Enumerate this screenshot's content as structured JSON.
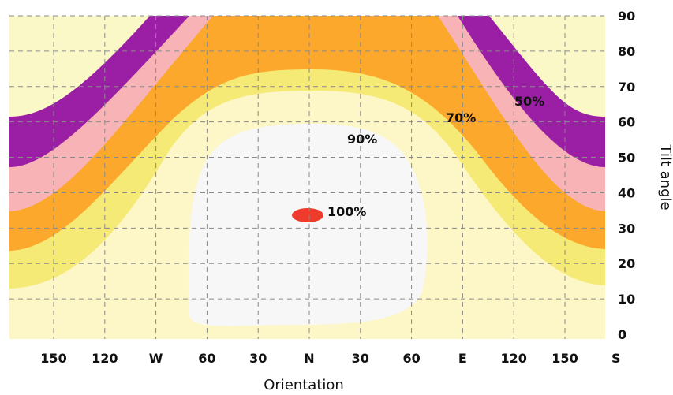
{
  "chart_data": {
    "type": "heatmap",
    "xlabel": "Orientation",
    "ylabel": "Tilt angle",
    "x_ticks": [
      "150",
      "120",
      "W",
      "60",
      "30",
      "N",
      "30",
      "60",
      "E",
      "120",
      "150",
      "S"
    ],
    "y_ticks": [
      "90",
      "80",
      "70",
      "60",
      "50",
      "40",
      "30",
      "20",
      "10",
      "0"
    ],
    "ylim": [
      0,
      90
    ],
    "grid": true,
    "zones": [
      {
        "label": "",
        "color": "#fbf8c8"
      },
      {
        "label": "50%",
        "color": "#9b1fa5"
      },
      {
        "label": "",
        "color": "#f7b3b6"
      },
      {
        "label": "70%",
        "color": "#fba82c"
      },
      {
        "label": "",
        "color": "#f6ea76"
      },
      {
        "label": "90%",
        "color": "#fdf6c6"
      },
      {
        "label": "",
        "color": "#f7f7f7"
      },
      {
        "label": "100%",
        "color": "#ef3b2c"
      }
    ]
  }
}
